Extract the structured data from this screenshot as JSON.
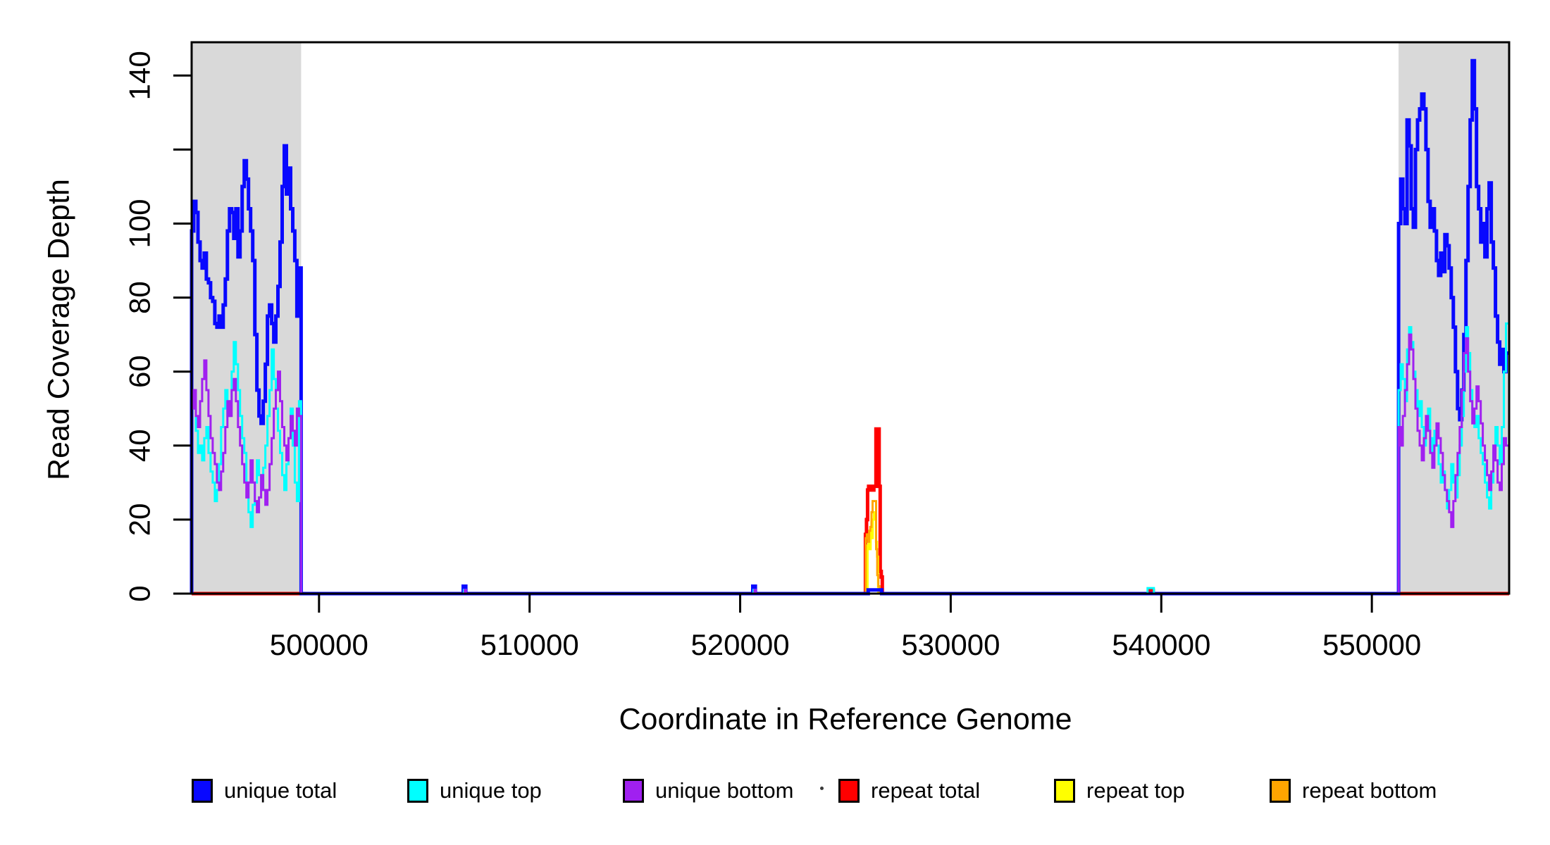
{
  "chart_data": {
    "type": "line",
    "subtype": "step-coverage-plot",
    "title": "",
    "xlabel": "Coordinate in Reference Genome",
    "ylabel": "Read Coverage Depth",
    "xlim": [
      493950,
      556520
    ],
    "ylim": [
      0,
      149
    ],
    "grid": false,
    "legend_position": "bottom",
    "highlight_color": "#d9d9d9",
    "highlight_regions": [
      {
        "name": "left-shaded-region",
        "x0": 493950,
        "x1": 499150
      },
      {
        "name": "right-shaded-region",
        "x0": 551270,
        "x1": 556520
      }
    ],
    "x_ticks": [
      {
        "v": 500000,
        "label": "500000"
      },
      {
        "v": 510000,
        "label": "510000"
      },
      {
        "v": 520000,
        "label": "520000"
      },
      {
        "v": 530000,
        "label": "530000"
      },
      {
        "v": 540000,
        "label": "540000"
      },
      {
        "v": 550000,
        "label": "550000"
      }
    ],
    "y_ticks": [
      {
        "v": 0,
        "label": "0"
      },
      {
        "v": 20,
        "label": "20"
      },
      {
        "v": 40,
        "label": "40"
      },
      {
        "v": 60,
        "label": "60"
      },
      {
        "v": 80,
        "label": "80"
      },
      {
        "v": 100,
        "label": "100"
      },
      {
        "v": 120,
        "label": ""
      },
      {
        "v": 140,
        "label": "140"
      }
    ],
    "draw_order": [
      3,
      4,
      5,
      0,
      1,
      2
    ],
    "series": [
      {
        "name": "unique total",
        "color": "#0808ff",
        "lwd": 5,
        "segments": [
          {
            "x0": 493950,
            "dx": 100,
            "v": [
              98,
              106,
              103,
              95,
              90,
              88,
              92,
              85,
              84,
              80,
              79,
              73,
              72,
              75,
              72,
              78,
              85,
              98,
              104,
              103,
              96,
              104,
              91,
              98,
              110,
              117,
              112,
              104,
              98,
              90,
              70,
              55,
              48,
              46,
              52,
              62,
              75,
              78,
              73,
              68,
              75,
              83,
              95,
              110,
              121,
              108,
              115,
              104,
              98,
              90,
              75,
              88,
              0
            ]
          },
          {
            "x0": 506850,
            "dx": 120,
            "v": [
              2,
              0
            ]
          },
          {
            "x0": 520600,
            "dx": 120,
            "v": [
              2,
              0
            ]
          },
          {
            "x0": 526080,
            "dx": 640,
            "v": [
              1,
              0
            ]
          },
          {
            "x0": 551270,
            "dx": 100,
            "v": [
              100,
              112,
              104,
              100,
              128,
              121,
              104,
              99,
              120,
              128,
              131,
              135,
              131,
              120,
              106,
              99,
              104,
              98,
              90,
              86,
              92,
              87,
              97,
              94,
              88,
              80,
              72,
              60,
              50,
              47,
              55,
              70,
              90,
              110,
              128,
              144,
              131,
              110,
              104,
              95,
              100,
              91,
              104,
              111,
              95,
              88,
              75,
              68,
              62,
              66,
              60,
              65
            ]
          }
        ]
      },
      {
        "name": "unique top",
        "color": "#00ffff",
        "lwd": 3,
        "segments": [
          {
            "x0": 493950,
            "dx": 100,
            "v": [
              53,
              50,
              44,
              38,
              40,
              36,
              42,
              45,
              38,
              33,
              30,
              25,
              28,
              35,
              45,
              50,
              55,
              48,
              52,
              60,
              68,
              62,
              55,
              48,
              42,
              38,
              30,
              22,
              18,
              24,
              30,
              36,
              32,
              28,
              34,
              40,
              48,
              55,
              66,
              58,
              50,
              44,
              38,
              32,
              28,
              35,
              42,
              50,
              40,
              30,
              25,
              52,
              0
            ]
          },
          {
            "x0": 506880,
            "dx": 80,
            "v": [
              1,
              0
            ]
          },
          {
            "x0": 520630,
            "dx": 80,
            "v": [
              1,
              0
            ]
          },
          {
            "x0": 539350,
            "dx": 300,
            "v": [
              1.5,
              0
            ]
          },
          {
            "x0": 551270,
            "dx": 100,
            "v": [
              55,
              62,
              58,
              52,
              66,
              72,
              68,
              60,
              55,
              48,
              52,
              45,
              40,
              44,
              50,
              42,
              38,
              44,
              40,
              35,
              30,
              33,
              28,
              23,
              28,
              35,
              30,
              26,
              32,
              40,
              48,
              60,
              72,
              65,
              55,
              50,
              45,
              48,
              42,
              38,
              35,
              30,
              26,
              23,
              30,
              38,
              45,
              40,
              35,
              45,
              60,
              73
            ]
          }
        ]
      },
      {
        "name": "unique bottom",
        "color": "#a020f0",
        "lwd": 3,
        "segments": [
          {
            "x0": 493950,
            "dx": 100,
            "v": [
              50,
              55,
              48,
              45,
              52,
              58,
              63,
              55,
              48,
              42,
              38,
              35,
              30,
              28,
              33,
              38,
              45,
              52,
              48,
              55,
              58,
              52,
              45,
              40,
              35,
              30,
              26,
              30,
              36,
              30,
              25,
              22,
              26,
              32,
              28,
              24,
              28,
              35,
              42,
              50,
              55,
              60,
              52,
              45,
              40,
              36,
              42,
              48,
              44,
              40,
              50,
              48,
              0
            ]
          },
          {
            "x0": 506920,
            "dx": 60,
            "v": [
              1,
              0
            ]
          },
          {
            "x0": 520680,
            "dx": 60,
            "v": [
              1,
              0
            ]
          },
          {
            "x0": 551270,
            "dx": 100,
            "v": [
              45,
              40,
              48,
              55,
              62,
              70,
              66,
              58,
              50,
              44,
              40,
              36,
              42,
              48,
              44,
              38,
              34,
              40,
              46,
              42,
              38,
              32,
              28,
              25,
              22,
              18,
              25,
              32,
              38,
              45,
              55,
              65,
              69,
              60,
              52,
              46,
              50,
              56,
              52,
              46,
              40,
              36,
              32,
              28,
              33,
              40,
              36,
              30,
              28,
              35,
              42,
              40
            ]
          }
        ]
      },
      {
        "name": "repeat total",
        "color": "#ff0000",
        "lwd": 5,
        "segments": [
          {
            "x0": 525950,
            "dx": 50,
            "v": [
              16,
              20,
              28,
              29,
              28,
              29,
              29,
              28,
              29,
              29,
              44.5,
              44.5,
              44.5,
              29,
              6,
              4.5,
              0
            ]
          },
          {
            "x0": 539400,
            "dx": 220,
            "v": [
              0.8,
              0
            ]
          }
        ]
      },
      {
        "name": "repeat top",
        "color": "#ffff00",
        "lwd": 3,
        "segments": [
          {
            "x0": 526050,
            "dx": 50,
            "v": [
              13,
              16,
              12,
              18,
              15,
              20,
              22,
              22,
              14,
              10,
              0
            ]
          }
        ]
      },
      {
        "name": "repeat bottom",
        "color": "#ffa500",
        "lwd": 3,
        "segments": [
          {
            "x0": 525960,
            "dx": 55,
            "v": [
              15,
              16,
              14,
              17,
              18,
              22,
              25,
              25,
              25,
              12,
              5,
              2,
              0
            ]
          }
        ]
      }
    ]
  },
  "legend": {
    "items": [
      {
        "label": "unique total",
        "color": "#0808ff"
      },
      {
        "label": "unique top",
        "color": "#00ffff"
      },
      {
        "label": "unique bottom",
        "color": "#a020f0"
      },
      {
        "label": "repeat total",
        "color": "#ff0000"
      },
      {
        "label": "repeat top",
        "color": "#ffff00"
      },
      {
        "label": "repeat bottom",
        "color": "#ffa500"
      }
    ]
  },
  "artifacts": {
    "stray_dot": ""
  }
}
